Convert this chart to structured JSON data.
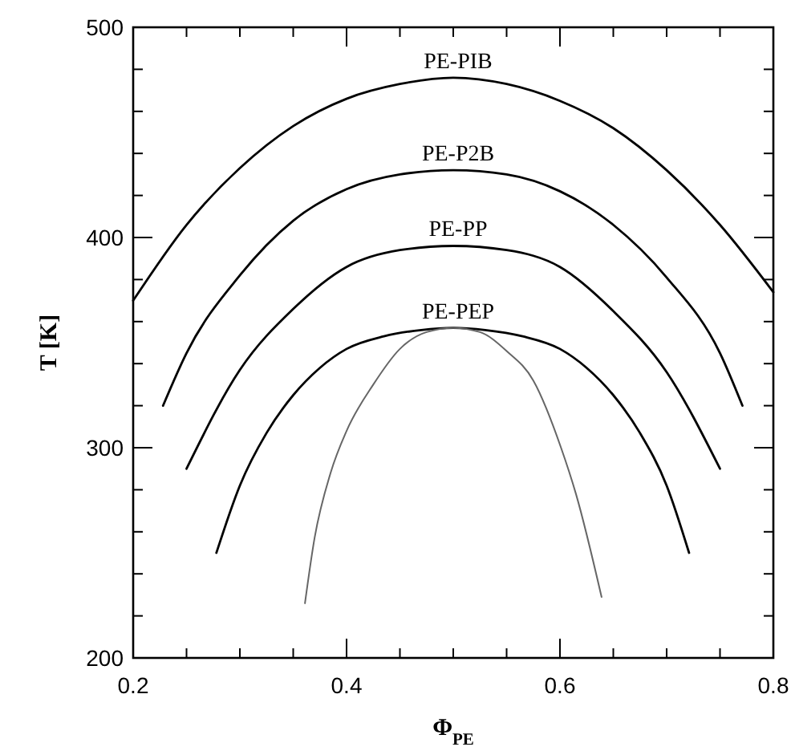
{
  "chart_data": {
    "type": "line",
    "xlabel": "Φ$_{PE}$",
    "ylabel": "T [K]",
    "xlim": [
      0.2,
      0.8
    ],
    "ylim": [
      200,
      500
    ],
    "xticks": [
      0.2,
      {
        "value": 0.25,
        "label": null
      },
      {
        "value": 0.3,
        "label": null
      },
      {
        "value": 0.35,
        "label": null
      },
      0.4,
      {
        "value": 0.45,
        "label": null
      },
      {
        "value": 0.5,
        "label": null
      },
      {
        "value": 0.55,
        "label": null
      },
      0.6,
      {
        "value": 0.65,
        "label": null
      },
      {
        "value": 0.7,
        "label": null
      },
      {
        "value": 0.75,
        "label": null
      },
      0.8
    ],
    "yticks": [
      200,
      {
        "value": 220,
        "label": null
      },
      {
        "value": 240,
        "label": null
      },
      {
        "value": 260,
        "label": null
      },
      {
        "value": 280,
        "label": null
      },
      300,
      {
        "value": 320,
        "label": null
      },
      {
        "value": 340,
        "label": null
      },
      {
        "value": 360,
        "label": null
      },
      {
        "value": 380,
        "label": null
      },
      400,
      {
        "value": 420,
        "label": null
      },
      {
        "value": 440,
        "label": null
      },
      {
        "value": 460,
        "label": null
      },
      {
        "value": 480,
        "label": null
      },
      500
    ],
    "grid": false,
    "marker": "none",
    "line_style": "solid",
    "series": [
      {
        "name": "PE-PIB",
        "color": "#000000",
        "x": [
          0.2,
          0.25,
          0.3,
          0.35,
          0.4,
          0.45,
          0.5,
          0.55,
          0.6,
          0.65,
          0.7,
          0.75,
          0.8
        ],
        "values": [
          370,
          406,
          433,
          453,
          466,
          473,
          476,
          473,
          465,
          452,
          432,
          406,
          374
        ]
      },
      {
        "name": "PE-P2B",
        "color": "#000000",
        "x": [
          0.228,
          0.25,
          0.3,
          0.35,
          0.4,
          0.45,
          0.5,
          0.55,
          0.6,
          0.65,
          0.7,
          0.75,
          0.771
        ],
        "values": [
          320,
          345,
          382,
          408,
          423,
          430,
          432,
          430,
          422,
          406,
          381,
          345,
          320
        ]
      },
      {
        "name": "PE-PP",
        "color": "#000000",
        "x": [
          0.25,
          0.3,
          0.35,
          0.4,
          0.45,
          0.5,
          0.55,
          0.6,
          0.65,
          0.7,
          0.75
        ],
        "values": [
          290,
          337,
          366,
          386,
          394,
          396,
          394,
          386,
          365,
          336,
          290
        ]
      },
      {
        "name": "PE-PEP",
        "color": "#000000",
        "x": [
          0.278,
          0.3,
          0.325,
          0.35,
          0.375,
          0.4,
          0.435,
          0.47,
          0.5,
          0.53,
          0.565,
          0.6,
          0.625,
          0.65,
          0.675,
          0.7,
          0.721
        ],
        "values": [
          250,
          282,
          307,
          325,
          338,
          347,
          353,
          356,
          357,
          356,
          353,
          347,
          338,
          325,
          307,
          282,
          250
        ]
      },
      {
        "color": "#666666",
        "x": [
          0.361,
          0.37,
          0.385,
          0.4,
          0.425,
          0.45,
          0.475,
          0.5,
          0.525,
          0.55,
          0.575,
          0.601,
          0.615,
          0.639
        ],
        "values": [
          226,
          257,
          288,
          308,
          330,
          347,
          355,
          357,
          355,
          346,
          332,
          300,
          278,
          229
        ]
      }
    ]
  }
}
